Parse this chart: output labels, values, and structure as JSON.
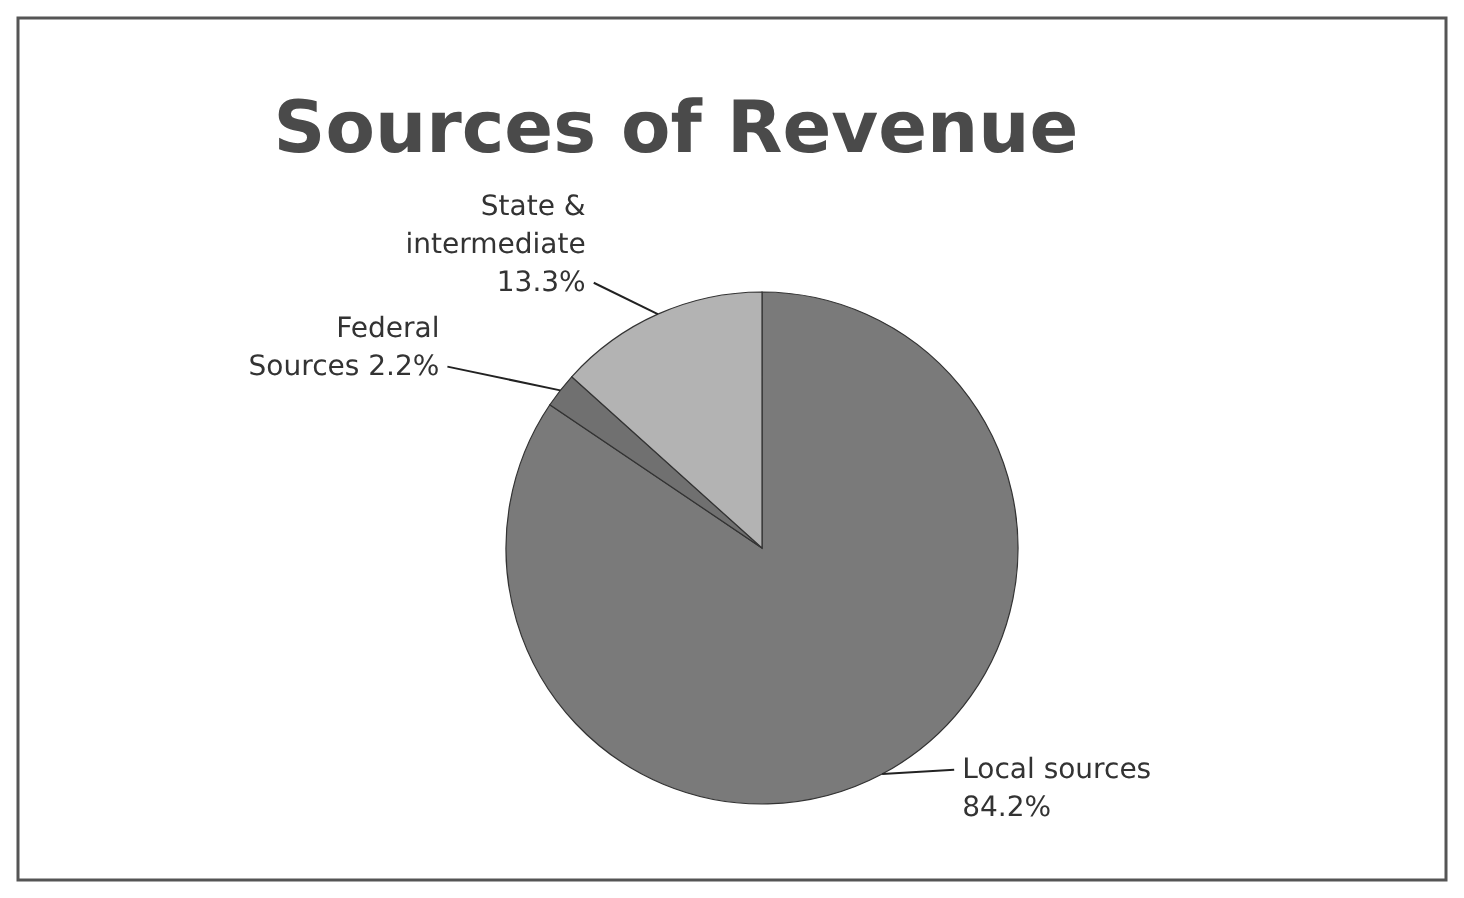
{
  "chart_data": {
    "type": "pie",
    "title": "Sources of Revenue",
    "categories": [
      "Local sources",
      "Federal Sources",
      "State & intermediate"
    ],
    "values": [
      84.2,
      2.2,
      13.3
    ],
    "value_labels": [
      "84.2%",
      "2.2%",
      "13.3%"
    ],
    "colors": [
      "#7a7a7a",
      "#707070",
      "#b3b3b3"
    ]
  }
}
